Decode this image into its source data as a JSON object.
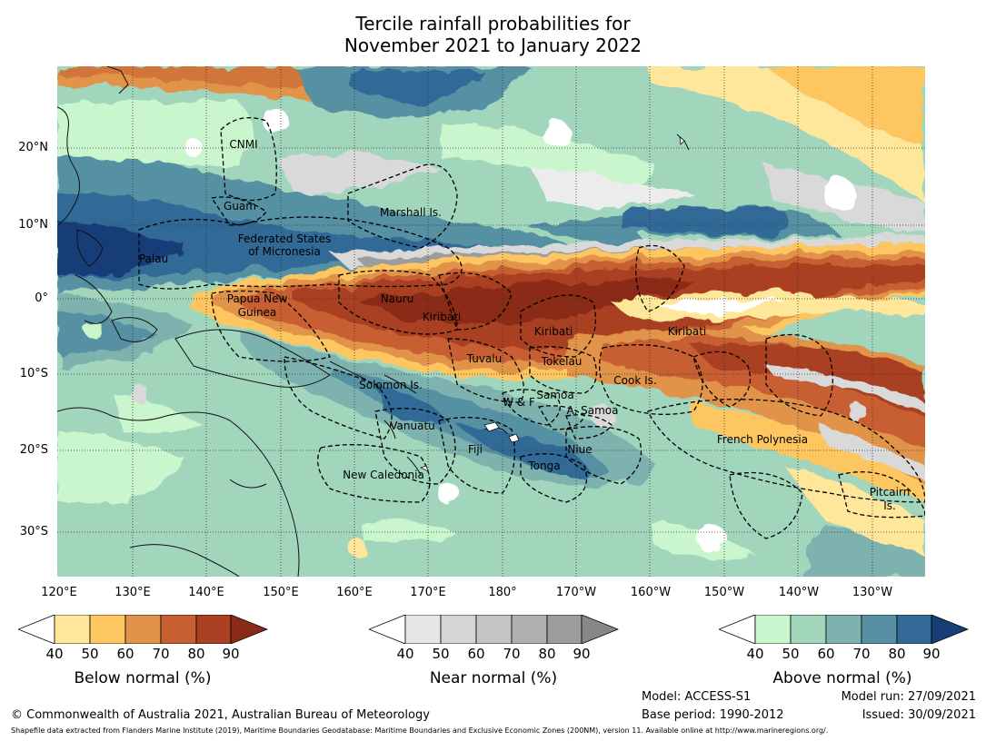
{
  "title": {
    "line1": "Tercile rainfall probabilities for",
    "line2": "November 2021 to January 2022"
  },
  "lat_labels": [
    "20°N",
    "10°N",
    "0°",
    "10°S",
    "20°S",
    "30°S"
  ],
  "lon_labels": [
    "120°E",
    "130°E",
    "140°E",
    "150°E",
    "160°E",
    "170°E",
    "180°",
    "170°W",
    "160°W",
    "150°W",
    "140°W",
    "130°W"
  ],
  "regions": {
    "cnmi": "CNMI",
    "guam": "Guam",
    "marshall": "Marshall Is.",
    "fsm1": "Federated States",
    "fsm2": "of Micronesia",
    "palau": "Palau",
    "png1": "Papua New",
    "png2": "Guinea",
    "nauru": "Nauru",
    "kiribati_w": "Kiribati",
    "kiribati_c": "Kiribati",
    "kiribati_e": "Kiribati",
    "tuvalu": "Tuvalu",
    "tokelau": "Tokelau",
    "solomon": "Solomon Is.",
    "cook": "Cook Is.",
    "wf": "W & F",
    "samoa": "Samoa",
    "asamoa": "A. Samoa",
    "vanuatu": "Vanuatu",
    "fiji": "Fiji",
    "niue": "Niue",
    "tonga": "Tonga",
    "newcal": "New Caledonia",
    "frpoly": "French Polynesia",
    "pitcairn1": "Pitcairn",
    "pitcairn2": "Is."
  },
  "colorbars": [
    {
      "title": "Below normal (%)",
      "ticks": [
        "40",
        "50",
        "60",
        "70",
        "80",
        "90"
      ],
      "colors": [
        "#ffffff",
        "#fee79b",
        "#fdc660",
        "#e0934a",
        "#c85f30",
        "#a94022",
        "#8b2a17"
      ]
    },
    {
      "title": "Near normal (%)",
      "ticks": [
        "40",
        "50",
        "60",
        "70",
        "80",
        "90"
      ],
      "colors": [
        "#ffffff",
        "#e6e6e6",
        "#d5d5d5",
        "#c4c4c4",
        "#b0b0b0",
        "#9c9c9c",
        "#878787"
      ]
    },
    {
      "title": "Above normal (%)",
      "ticks": [
        "40",
        "50",
        "60",
        "70",
        "80",
        "90"
      ],
      "colors": [
        "#ffffff",
        "#c9f6cd",
        "#a1d6bd",
        "#7eb2ae",
        "#5790a3",
        "#336a97",
        "#163e78"
      ]
    }
  ],
  "footer": {
    "copyright": "© Commonwealth of Australia 2021, Australian Bureau of Meteorology",
    "model": "Model: ACCESS-S1",
    "base_period": "Base period: 1990-2012",
    "model_run": "Model run: 27/09/2021",
    "issued": "Issued: 30/09/2021",
    "shapefile": "Shapefile data extracted from Flanders Marine Institute (2019), Maritime Boundaries Geodatabase: Maritime Boundaries and Exclusive Economic Zones (200NM), version 11. Available online at http://www.marineregions.org/."
  },
  "palette": {
    "green_light": "#c9f6cd",
    "green_mid": "#a1d6bd",
    "teal": "#7eb2ae",
    "blue_mid": "#5790a3",
    "blue_dark": "#336a97",
    "yellow": "#fee79b",
    "orange_light": "#fdc660",
    "orange": "#e0934a",
    "red_orange": "#c85f30",
    "red": "#a94022",
    "red_dark": "#8b2a17",
    "grey": "#d9d9d9"
  }
}
